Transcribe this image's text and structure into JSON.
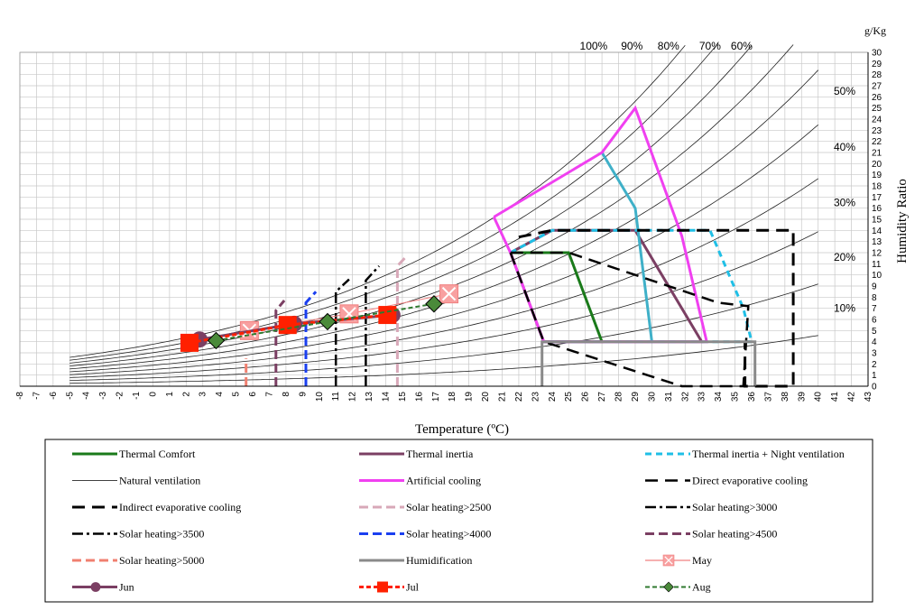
{
  "chart_data": {
    "type": "line",
    "title": "",
    "xlabel": "Temperature (ºC)",
    "ylabel": "Humidity Ratio",
    "y_unit": "g/Kg",
    "xlim": [
      -8,
      43
    ],
    "ylim": [
      0,
      30
    ],
    "x_ticks": [
      -8,
      -7,
      -6,
      -5,
      -4,
      -3,
      -2,
      -1,
      0,
      1,
      2,
      3,
      4,
      5,
      6,
      7,
      8,
      9,
      10,
      11,
      12,
      13,
      14,
      15,
      16,
      17,
      18,
      19,
      20,
      21,
      22,
      23,
      24,
      25,
      26,
      27,
      28,
      29,
      30,
      31,
      32,
      33,
      34,
      35,
      36,
      37,
      38,
      39,
      40,
      41,
      42,
      43
    ],
    "y_ticks": [
      0,
      1,
      2,
      3,
      4,
      5,
      6,
      7,
      8,
      9,
      10,
      11,
      12,
      13,
      14,
      15,
      16,
      17,
      18,
      19,
      20,
      21,
      22,
      23,
      24,
      25,
      26,
      27,
      28,
      29,
      30
    ],
    "grid": true,
    "rh_top_labels": [
      {
        "text": "100%",
        "x": 26.5
      },
      {
        "text": "90%",
        "x": 28.8
      },
      {
        "text": "80%",
        "x": 31.0
      },
      {
        "text": "70%",
        "x": 33.5
      },
      {
        "text": "60%",
        "x": 35.4
      }
    ],
    "rh_side_labels": [
      {
        "text": "50%",
        "y": 26.5
      },
      {
        "text": "40%",
        "y": 21.5
      },
      {
        "text": "30%",
        "y": 16.5
      },
      {
        "text": "20%",
        "y": 11.6
      },
      {
        "text": "10%",
        "y": 7.0
      }
    ],
    "legend_position": "bottom",
    "series": [
      {
        "name": "Thermal Comfort",
        "color": "#1a7a1a",
        "dash": "",
        "width": 3,
        "points": [
          [
            21.5,
            12
          ],
          [
            25,
            12
          ],
          [
            27,
            4
          ],
          [
            23.5,
            4
          ]
        ]
      },
      {
        "name": "Thermal inertia",
        "color": "#7b3f63",
        "dash": "",
        "width": 3,
        "points": [
          [
            21.5,
            12
          ],
          [
            24,
            14
          ],
          [
            29,
            14
          ],
          [
            33,
            4
          ],
          [
            23.5,
            4
          ],
          [
            21.5,
            12
          ]
        ]
      },
      {
        "name": "Thermal inertia + Night ventilation",
        "color": "#1fbfe6",
        "dash": "7,5",
        "width": 3,
        "points": [
          [
            21.5,
            12
          ],
          [
            24,
            14
          ],
          [
            33.5,
            14
          ],
          [
            35.5,
            7
          ],
          [
            36,
            4
          ],
          [
            23.5,
            4
          ]
        ]
      },
      {
        "name": "Natural ventilation",
        "color": "#3fb0c8",
        "dash": "",
        "width": 3,
        "points": [
          [
            27,
            21
          ],
          [
            29,
            16
          ],
          [
            30,
            4
          ]
        ]
      },
      {
        "name": "Artificial cooling",
        "color": "#f040f0",
        "dash": "",
        "width": 3,
        "points": [
          [
            20.5,
            15.2
          ],
          [
            27,
            21
          ],
          [
            29,
            25
          ],
          [
            31.8,
            13.5
          ],
          [
            33.3,
            4
          ],
          [
            23.5,
            4
          ],
          [
            21.5,
            12
          ],
          [
            20.5,
            15.2
          ]
        ]
      },
      {
        "name": "Direct evaporative cooling",
        "color": "#000000",
        "dash": "14,8",
        "width": 2.5,
        "points": [
          [
            21.5,
            12
          ],
          [
            25,
            12
          ],
          [
            34,
            7.5
          ],
          [
            35.8,
            7.2
          ],
          [
            35.5,
            0
          ],
          [
            31.8,
            0
          ],
          [
            23.5,
            4
          ],
          [
            21.5,
            12
          ]
        ]
      },
      {
        "name": "Indirect evaporative cooling",
        "color": "#000000",
        "dash": "14,8",
        "width": 3,
        "points": [
          [
            22,
            13.4
          ],
          [
            24,
            14
          ],
          [
            38.5,
            14
          ],
          [
            38.5,
            0
          ],
          [
            35.6,
            0
          ],
          [
            35.6,
            4
          ]
        ]
      },
      {
        "name": "Solar heating>2500",
        "color": "#d8a8b8",
        "dash": "10,5",
        "width": 3,
        "points": [
          [
            14.7,
            0
          ],
          [
            14.7,
            10.8
          ],
          [
            15.2,
            11.6
          ]
        ]
      },
      {
        "name": "Solar heating>3000",
        "color": "#000000",
        "dash": "12,4,3,4",
        "width": 2.5,
        "points": [
          [
            12.8,
            0
          ],
          [
            12.8,
            9.5
          ],
          [
            13.6,
            10.8
          ]
        ]
      },
      {
        "name": "Solar heating>3500",
        "color": "#000000",
        "dash": "12,4,3,4",
        "width": 2.5,
        "points": [
          [
            11,
            0
          ],
          [
            11,
            8.5
          ],
          [
            11.8,
            9.6
          ]
        ]
      },
      {
        "name": "Solar heating>4000",
        "color": "#1a3ff0",
        "dash": "10,5",
        "width": 3,
        "points": [
          [
            9.2,
            0
          ],
          [
            9.2,
            7.5
          ],
          [
            9.8,
            8.5
          ]
        ]
      },
      {
        "name": "Solar heating>4500",
        "color": "#7b3f63",
        "dash": "10,5",
        "width": 3,
        "points": [
          [
            7.4,
            0
          ],
          [
            7.4,
            6.8
          ],
          [
            7.9,
            7.7
          ]
        ]
      },
      {
        "name": "Solar heating>5000",
        "color": "#f08070",
        "dash": "10,5",
        "width": 3,
        "points": [
          [
            5.6,
            0
          ],
          [
            5.6,
            2.5
          ]
        ]
      },
      {
        "name": "Humidification",
        "color": "#8a8a8a",
        "dash": "",
        "width": 3,
        "points": [
          [
            23.4,
            0
          ],
          [
            23.4,
            4
          ],
          [
            36.2,
            4
          ],
          [
            36.2,
            0
          ]
        ]
      },
      {
        "name": "May",
        "color": "#f08080",
        "dash": "",
        "width": 1,
        "marker": "xsquare",
        "points": [
          [
            5.8,
            5
          ],
          [
            11.8,
            6.5
          ],
          [
            17.8,
            8.3
          ]
        ]
      },
      {
        "name": "Jun",
        "color": "#7b3f63",
        "dash": "",
        "width": 3,
        "marker": "circle",
        "points": [
          [
            2.8,
            4.2
          ],
          [
            8.5,
            5.6
          ],
          [
            14.4,
            6.4
          ]
        ]
      },
      {
        "name": "Jul",
        "color": "#ff2000",
        "dash": "5,3",
        "width": 3,
        "marker": "square",
        "points": [
          [
            2.2,
            3.9
          ],
          [
            8.1,
            5.5
          ],
          [
            14.1,
            6.4
          ]
        ]
      },
      {
        "name": "Aug",
        "color": "#2f7a2f",
        "dash": "5,3",
        "width": 2,
        "marker": "diamond",
        "points": [
          [
            3.8,
            4.1
          ],
          [
            10.5,
            5.8
          ],
          [
            16.9,
            7.4
          ]
        ]
      }
    ]
  }
}
